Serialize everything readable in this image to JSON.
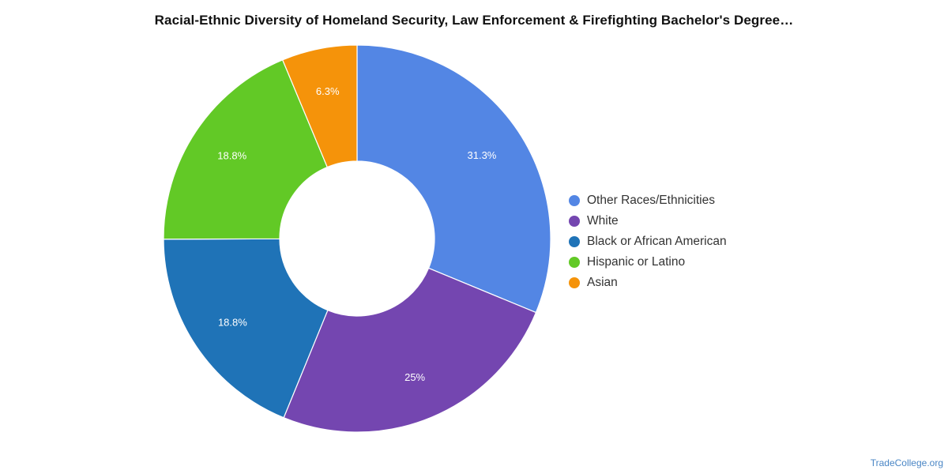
{
  "chart_data": {
    "type": "pie",
    "title": "Racial-Ethnic Diversity of Homeland Security, Law Enforcement & Firefighting Bachelor's Degree…",
    "subtitle": "",
    "slices": [
      {
        "label": "Other Races/Ethnicities",
        "value": 31.3,
        "value_label": "31.3%",
        "color": "#5386e4"
      },
      {
        "label": "White",
        "value": 25,
        "value_label": "25%",
        "color": "#7446b0"
      },
      {
        "label": "Black or African American",
        "value": 18.8,
        "value_label": "18.8%",
        "color": "#1f73b7"
      },
      {
        "label": "Hispanic or Latino",
        "value": 18.8,
        "value_label": "18.8%",
        "color": "#62c926"
      },
      {
        "label": "Asian",
        "value": 6.3,
        "value_label": "6.3%",
        "color": "#f5930a"
      }
    ],
    "donut": true,
    "start_angle": "12 o'clock",
    "direction": "clockwise",
    "legend_position": "right"
  },
  "watermark": "TradeCollege.org"
}
